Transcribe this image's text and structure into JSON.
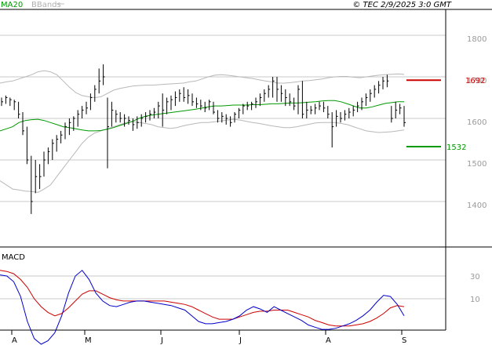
{
  "header": {
    "ma_label": "MA20",
    "bbands_label": "BBands",
    "copyright": "© TEC 2/9/2025 3:0 GMT"
  },
  "macd_label": "MACD",
  "colors": {
    "ma20": "#009900",
    "bbands": "#b0b0b0",
    "macd_line": "#0000cc",
    "signal_line": "#cc0000",
    "resistance": "#cc0000",
    "support": "#009900",
    "price_bars": "#000000"
  },
  "chart_data": [
    {
      "type": "ohlc",
      "panel": "price",
      "y_tick_labels": [
        "1800",
        "1700",
        "1600",
        "1500",
        "1400"
      ],
      "ylim": [
        1310,
        1860
      ],
      "grid": true,
      "x_tick_labels": [
        "A",
        "M",
        "J",
        "J",
        "A",
        "S"
      ],
      "legend": [
        "MA20",
        "BBands"
      ],
      "levels": [
        {
          "label": "1692",
          "value": 1692,
          "color": "#cc0000"
        },
        {
          "label": "1532",
          "value": 1532,
          "color": "#009900"
        }
      ],
      "bars": [
        [
          1650,
          1630,
          1640
        ],
        [
          1655,
          1635,
          1650
        ],
        [
          1650,
          1630,
          1645
        ],
        [
          1645,
          1620,
          1640
        ],
        [
          1640,
          1600,
          1610
        ],
        [
          1615,
          1560,
          1570
        ],
        [
          1580,
          1490,
          1500
        ],
        [
          1510,
          1370,
          1400
        ],
        [
          1500,
          1420,
          1460
        ],
        [
          1490,
          1430,
          1460
        ],
        [
          1520,
          1460,
          1500
        ],
        [
          1530,
          1490,
          1520
        ],
        [
          1550,
          1500,
          1540
        ],
        [
          1560,
          1520,
          1550
        ],
        [
          1570,
          1540,
          1560
        ],
        [
          1590,
          1550,
          1580
        ],
        [
          1600,
          1560,
          1590
        ],
        [
          1605,
          1570,
          1600
        ],
        [
          1620,
          1580,
          1610
        ],
        [
          1630,
          1600,
          1620
        ],
        [
          1640,
          1610,
          1625
        ],
        [
          1660,
          1620,
          1650
        ],
        [
          1680,
          1640,
          1670
        ],
        [
          1720,
          1660,
          1690
        ],
        [
          1730,
          1680,
          1700
        ],
        [
          1650,
          1480,
          1580
        ],
        [
          1640,
          1580,
          1620
        ],
        [
          1620,
          1590,
          1610
        ],
        [
          1615,
          1590,
          1600
        ],
        [
          1610,
          1580,
          1600
        ],
        [
          1605,
          1585,
          1595
        ],
        [
          1600,
          1570,
          1585
        ],
        [
          1605,
          1575,
          1590
        ],
        [
          1610,
          1580,
          1600
        ],
        [
          1615,
          1590,
          1605
        ],
        [
          1620,
          1595,
          1610
        ],
        [
          1625,
          1600,
          1615
        ],
        [
          1640,
          1600,
          1630
        ],
        [
          1660,
          1580,
          1620
        ],
        [
          1650,
          1610,
          1640
        ],
        [
          1655,
          1620,
          1645
        ],
        [
          1665,
          1630,
          1650
        ],
        [
          1670,
          1640,
          1660
        ],
        [
          1675,
          1640,
          1650
        ],
        [
          1670,
          1635,
          1655
        ],
        [
          1660,
          1630,
          1640
        ],
        [
          1650,
          1625,
          1635
        ],
        [
          1645,
          1620,
          1630
        ],
        [
          1640,
          1615,
          1625
        ],
        [
          1645,
          1620,
          1640
        ],
        [
          1640,
          1610,
          1615
        ],
        [
          1620,
          1590,
          1600
        ],
        [
          1615,
          1590,
          1605
        ],
        [
          1610,
          1585,
          1600
        ],
        [
          1605,
          1580,
          1590
        ],
        [
          1615,
          1590,
          1610
        ],
        [
          1625,
          1600,
          1620
        ],
        [
          1635,
          1610,
          1630
        ],
        [
          1640,
          1620,
          1630
        ],
        [
          1640,
          1620,
          1635
        ],
        [
          1650,
          1625,
          1640
        ],
        [
          1660,
          1630,
          1650
        ],
        [
          1670,
          1640,
          1660
        ],
        [
          1680,
          1650,
          1670
        ],
        [
          1700,
          1650,
          1690
        ],
        [
          1700,
          1640,
          1670
        ],
        [
          1680,
          1640,
          1660
        ],
        [
          1670,
          1630,
          1650
        ],
        [
          1660,
          1630,
          1640
        ],
        [
          1650,
          1620,
          1630
        ],
        [
          1680,
          1610,
          1670
        ],
        [
          1690,
          1600,
          1610
        ],
        [
          1640,
          1600,
          1620
        ],
        [
          1630,
          1610,
          1620
        ],
        [
          1635,
          1610,
          1625
        ],
        [
          1640,
          1620,
          1630
        ],
        [
          1640,
          1615,
          1625
        ],
        [
          1630,
          1600,
          1610
        ],
        [
          1615,
          1530,
          1580
        ],
        [
          1620,
          1580,
          1605
        ],
        [
          1615,
          1590,
          1600
        ],
        [
          1620,
          1595,
          1610
        ],
        [
          1625,
          1600,
          1615
        ],
        [
          1630,
          1605,
          1620
        ],
        [
          1640,
          1615,
          1630
        ],
        [
          1650,
          1620,
          1640
        ],
        [
          1660,
          1630,
          1650
        ],
        [
          1670,
          1640,
          1660
        ],
        [
          1680,
          1650,
          1670
        ],
        [
          1690,
          1660,
          1680
        ],
        [
          1700,
          1670,
          1690
        ],
        [
          1705,
          1675,
          1690
        ],
        [
          1630,
          1590,
          1600
        ],
        [
          1640,
          1600,
          1620
        ],
        [
          1635,
          1610,
          1625
        ],
        [
          1630,
          1580,
          1590
        ]
      ],
      "ma20": [
        1570,
        1575,
        1580,
        1590,
        1595,
        1597,
        1598,
        1595,
        1590,
        1585,
        1580,
        1578,
        1575,
        1572,
        1570,
        1570,
        1571,
        1574,
        1578,
        1583,
        1588,
        1593,
        1600,
        1605,
        1608,
        1610,
        1612,
        1614,
        1616,
        1618,
        1620,
        1622,
        1625,
        1628,
        1630,
        1630,
        1631,
        1632,
        1632,
        1632,
        1633,
        1633,
        1634,
        1635,
        1635,
        1636,
        1637,
        1637,
        1638,
        1639,
        1640,
        1642,
        1643,
        1643,
        1640,
        1635,
        1630,
        1625,
        1625,
        1628,
        1632,
        1636,
        1638,
        1640,
        1640
      ],
      "bb_upper": [
        1685,
        1688,
        1690,
        1695,
        1700,
        1705,
        1712,
        1715,
        1712,
        1705,
        1690,
        1675,
        1662,
        1655,
        1652,
        1650,
        1652,
        1660,
        1668,
        1672,
        1675,
        1678,
        1679,
        1680,
        1680,
        1681,
        1682,
        1683,
        1684,
        1685,
        1688,
        1690,
        1695,
        1700,
        1704,
        1705,
        1704,
        1702,
        1700,
        1698,
        1696,
        1693,
        1690,
        1688,
        1685,
        1685,
        1686,
        1688,
        1690,
        1691,
        1693,
        1695,
        1698,
        1700,
        1701,
        1701,
        1699,
        1698,
        1700,
        1702,
        1704,
        1705,
        1706,
        1707,
        1706
      ],
      "bb_lower": [
        1450,
        1440,
        1430,
        1428,
        1425,
        1424,
        1422,
        1430,
        1440,
        1460,
        1480,
        1500,
        1520,
        1540,
        1555,
        1565,
        1570,
        1575,
        1580,
        1585,
        1590,
        1592,
        1590,
        1588,
        1585,
        1580,
        1578,
        1576,
        1578,
        1582,
        1585,
        1588,
        1590,
        1590,
        1592,
        1594,
        1596,
        1598,
        1596,
        1593,
        1590,
        1588,
        1585,
        1582,
        1580,
        1578,
        1578,
        1580,
        1583,
        1586,
        1589,
        1590,
        1590,
        1590,
        1588,
        1585,
        1580,
        1575,
        1570,
        1568,
        1566,
        1567,
        1568,
        1570,
        1572
      ]
    },
    {
      "type": "line",
      "panel": "macd",
      "title": "MACD",
      "y_tick_labels": [
        "30",
        "10"
      ],
      "ylim": [
        -40,
        50
      ],
      "series": [
        {
          "values": [
            31,
            30,
            25,
            12,
            -10,
            -25,
            -30,
            -27,
            -20,
            -5,
            15,
            30,
            35,
            27,
            15,
            8,
            4,
            3,
            5,
            7,
            8,
            8,
            7,
            6,
            5,
            4,
            2,
            0,
            -5,
            -10,
            -12,
            -12,
            -11,
            -10,
            -8,
            -5,
            0,
            3,
            1,
            -2,
            3,
            0,
            -3,
            -6,
            -9,
            -13,
            -15,
            -17,
            -17,
            -16,
            -14,
            -12,
            -9,
            -5,
            0,
            7,
            13,
            12,
            5,
            -5
          ]
        },
        {
          "values": [
            35,
            34,
            32,
            27,
            20,
            10,
            3,
            -2,
            -5,
            -3,
            2,
            8,
            14,
            17,
            17,
            14,
            11,
            9,
            8,
            8,
            8,
            8,
            8,
            8,
            8,
            7,
            6,
            5,
            3,
            0,
            -3,
            -6,
            -8,
            -8,
            -8,
            -6,
            -4,
            -2,
            -1,
            -1,
            0,
            0,
            0,
            -2,
            -4,
            -6,
            -9,
            -11,
            -13,
            -14,
            -14,
            -14,
            -13,
            -12,
            -10,
            -7,
            -3,
            2,
            4,
            3
          ]
        }
      ]
    }
  ]
}
